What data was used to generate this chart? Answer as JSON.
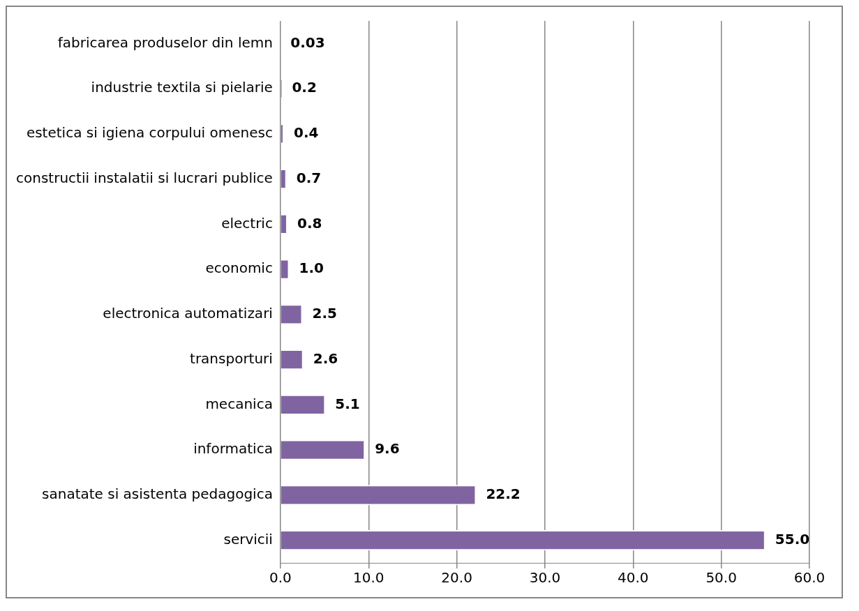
{
  "chart_data": {
    "type": "bar",
    "orientation": "horizontal",
    "categories": [
      "fabricarea produselor din lemn",
      "industrie textila si pielarie",
      "estetica si igiena corpului omenesc",
      "constructii instalatii si lucrari publice",
      "electric",
      "economic",
      "electronica automatizari",
      "transporturi",
      "mecanica",
      "informatica",
      "sanatate si asistenta pedagogica",
      "servicii"
    ],
    "values": [
      0.03,
      0.2,
      0.4,
      0.7,
      0.8,
      1.0,
      2.5,
      2.6,
      5.1,
      9.6,
      22.2,
      55.0
    ],
    "value_labels": [
      "0.03",
      "0.2",
      "0.4",
      "0.7",
      "0.8",
      "1.0",
      "2.5",
      "2.6",
      "5.1",
      "9.6",
      "22.2",
      "55.0"
    ],
    "color": "#8064a2",
    "xlim": [
      0,
      60
    ],
    "xticks": [
      {
        "value": 0,
        "label": "0.0"
      },
      {
        "value": 10,
        "label": "10.0"
      },
      {
        "value": 20,
        "label": "20.0"
      },
      {
        "value": 30,
        "label": "30.0"
      },
      {
        "value": 40,
        "label": "40.0"
      },
      {
        "value": 50,
        "label": "50.0"
      },
      {
        "value": 60,
        "label": "60.0"
      }
    ],
    "grid": "x",
    "legend": false
  }
}
